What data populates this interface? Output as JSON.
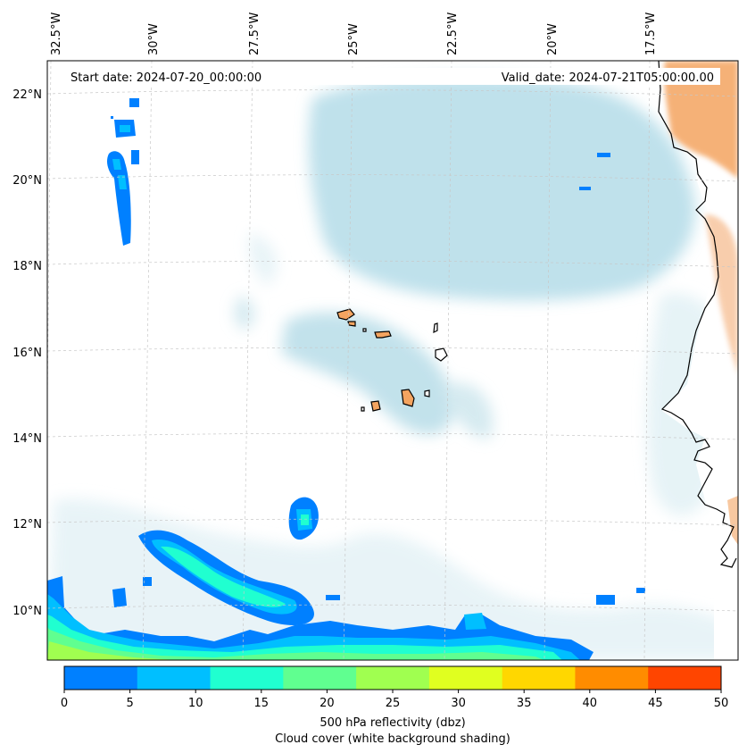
{
  "header": {
    "start_date": "Start date: 2024-07-20_00:00:00",
    "valid_date": "Valid_date: 2024-07-21T05:00:00.00"
  },
  "lon_labels": [
    "32.5°W",
    "30°W",
    "27.5°W",
    "25°W",
    "22.5°W",
    "20°W",
    "17.5°W"
  ],
  "lat_labels": [
    "22°N",
    "20°N",
    "18°N",
    "16°N",
    "14°N",
    "12°N",
    "10°N"
  ],
  "colorbar": {
    "ticks": [
      "0",
      "5",
      "10",
      "15",
      "20",
      "25",
      "30",
      "35",
      "40",
      "45",
      "50"
    ],
    "colors": [
      "#0080ff",
      "#00bfff",
      "#20ffd0",
      "#60ff90",
      "#a0ff50",
      "#e0ff20",
      "#ffd700",
      "#ff8c00",
      "#ff4500"
    ],
    "label_line1": "500 hPa reflectivity (dbz)",
    "label_line2": "Cloud cover (white background shading)"
  },
  "colors": {
    "cloud": "#a9d8e6",
    "land": "#f4a460",
    "coast": "#000000",
    "grid": "#c8c8c8"
  }
}
